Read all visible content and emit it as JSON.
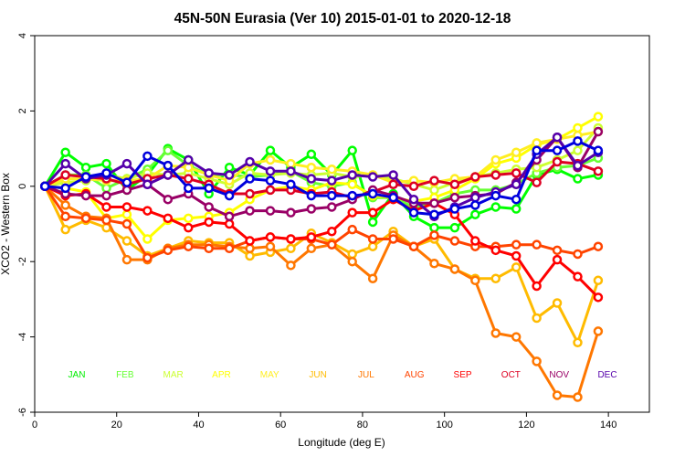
{
  "chart_data": {
    "type": "line",
    "title": "45N-50N Eurasia (Ver 10)   2015-01-01 to 2020-12-18",
    "xlabel": "Longitude (deg E)",
    "ylabel": "XCO2 - Western Box",
    "xlim": [
      0,
      150
    ],
    "ylim": [
      -6,
      4
    ],
    "xticks": [
      0,
      20,
      40,
      60,
      80,
      100,
      120,
      140
    ],
    "yticks": [
      -6,
      -4,
      -2,
      0,
      2,
      4
    ],
    "grid": false,
    "legend_placement": "bottom-inside",
    "x": [
      2.5,
      7.5,
      12.5,
      17.5,
      22.5,
      27.5,
      32.5,
      37.5,
      42.5,
      47.5,
      52.5,
      57.5,
      62.5,
      67.5,
      72.5,
      77.5,
      82.5,
      87.5,
      92.5,
      97.5,
      102.5,
      107.5,
      112.5,
      117.5,
      122.5,
      127.5,
      132.5,
      137.5
    ],
    "series": [
      {
        "name": "JAN",
        "color": "#00ff00",
        "values": [
          0,
          0.9,
          0.5,
          0.6,
          -0.1,
          0.3,
          1.0,
          0.7,
          -0.2,
          0.5,
          0.3,
          0.95,
          0.5,
          0.85,
          0.3,
          0.95,
          -0.95,
          -0.2,
          -0.8,
          -1.1,
          -1.1,
          -0.75,
          -0.55,
          -0.6,
          0.3,
          0.45,
          0.2,
          0.3
        ]
      },
      {
        "name": "FEB",
        "color": "#66ff33",
        "values": [
          0,
          0.3,
          0.3,
          -0.05,
          0.2,
          0.45,
          0.95,
          0.55,
          0.3,
          0.3,
          0.25,
          0.3,
          0.4,
          0.1,
          0.0,
          0.1,
          -0.3,
          -0.3,
          -0.55,
          -0.45,
          -0.2,
          -0.1,
          -0.1,
          0.05,
          0.35,
          0.5,
          0.55,
          0.75
        ]
      },
      {
        "name": "MAR",
        "color": "#ccff33",
        "values": [
          0,
          0.1,
          0.15,
          0.3,
          0.2,
          0.35,
          0.3,
          0.35,
          0.2,
          0.05,
          0.35,
          0.3,
          0.35,
          0.3,
          0.35,
          0.25,
          0.3,
          0.2,
          0.05,
          -0.1,
          0.1,
          0.25,
          0.35,
          0.45,
          0.5,
          0.7,
          0.95,
          1.55
        ]
      },
      {
        "name": "APR",
        "color": "#ffff00",
        "values": [
          0,
          -0.05,
          -0.15,
          -0.85,
          -0.75,
          -1.4,
          -0.9,
          -0.85,
          -0.8,
          -0.7,
          -0.35,
          -0.1,
          0.0,
          -0.1,
          0.1,
          0.05,
          -0.25,
          -0.3,
          -0.4,
          -0.3,
          -0.1,
          0.2,
          0.6,
          0.75,
          1.1,
          1.25,
          1.55,
          1.85
        ]
      },
      {
        "name": "MAY",
        "color": "#ffee22",
        "values": [
          0,
          0.2,
          0.2,
          0.15,
          0.15,
          0.2,
          0.55,
          0.5,
          0.3,
          0.15,
          0.6,
          0.7,
          0.6,
          0.5,
          0.45,
          0.4,
          0.3,
          0.1,
          0.15,
          0.1,
          0.2,
          0.25,
          0.7,
          0.9,
          1.15,
          1.25,
          1.35,
          1.45
        ]
      },
      {
        "name": "JUN",
        "color": "#ffbb00",
        "values": [
          0,
          -1.15,
          -0.9,
          -1.1,
          -1.45,
          -1.85,
          -1.65,
          -1.45,
          -1.5,
          -1.5,
          -1.85,
          -1.75,
          -1.65,
          -1.25,
          -1.5,
          -1.8,
          -1.6,
          -1.2,
          -1.6,
          -1.4,
          -2.2,
          -2.45,
          -2.45,
          -2.15,
          -3.5,
          -3.1,
          -4.15,
          -2.5
        ]
      },
      {
        "name": "JUL",
        "color": "#ff7700",
        "values": [
          0,
          -0.5,
          -0.8,
          -0.85,
          -1.95,
          -1.95,
          -1.65,
          -1.55,
          -1.55,
          -1.6,
          -1.65,
          -1.6,
          -2.1,
          -1.65,
          -1.55,
          -2.0,
          -2.45,
          -1.3,
          -1.6,
          -2.05,
          -2.2,
          -2.5,
          -3.9,
          -4.0,
          -4.65,
          -5.55,
          -5.6,
          -3.85
        ]
      },
      {
        "name": "AUG",
        "color": "#ff4400",
        "values": [
          0,
          -0.8,
          -0.85,
          -0.9,
          -1.0,
          -1.9,
          -1.7,
          -1.6,
          -1.65,
          -1.65,
          -1.45,
          -1.35,
          -1.4,
          -1.4,
          -1.55,
          -1.15,
          -1.4,
          -1.4,
          -1.6,
          -1.3,
          -1.45,
          -1.6,
          -1.6,
          -1.55,
          -1.55,
          -1.7,
          -1.8,
          -1.6
        ]
      },
      {
        "name": "SEP",
        "color": "#ff0000",
        "values": [
          0,
          -0.25,
          -0.2,
          -0.55,
          -0.55,
          -0.65,
          -0.85,
          -1.1,
          -0.95,
          -1.0,
          -1.45,
          -1.35,
          -1.4,
          -1.35,
          -1.2,
          -0.7,
          -0.7,
          -0.35,
          -0.65,
          -0.45,
          -0.75,
          -1.45,
          -1.7,
          -1.85,
          -2.65,
          -1.95,
          -2.4,
          -2.95
        ]
      },
      {
        "name": "OCT",
        "color": "#dd0022",
        "values": [
          0,
          0.3,
          0.25,
          0.2,
          0.05,
          0.2,
          0.3,
          0.2,
          0.05,
          -0.2,
          -0.2,
          -0.1,
          -0.1,
          -0.2,
          -0.15,
          -0.3,
          -0.15,
          0.05,
          0.0,
          0.15,
          0.05,
          0.25,
          0.3,
          0.35,
          0.1,
          0.65,
          0.6,
          0.4
        ]
      },
      {
        "name": "NOV",
        "color": "#990066",
        "values": [
          0,
          -0.2,
          -0.25,
          -0.25,
          -0.1,
          0.05,
          -0.35,
          -0.2,
          -0.55,
          -0.8,
          -0.65,
          -0.65,
          -0.7,
          -0.6,
          -0.55,
          -0.35,
          -0.1,
          -0.25,
          -0.45,
          -0.45,
          -0.3,
          -0.25,
          -0.2,
          0.1,
          0.7,
          1.3,
          0.5,
          1.45
        ]
      },
      {
        "name": "DEC",
        "color": "#5500aa",
        "values": [
          0,
          0.6,
          0.2,
          0.3,
          0.6,
          0.05,
          0.3,
          0.7,
          0.35,
          0.3,
          0.65,
          0.4,
          0.4,
          0.2,
          0.15,
          0.3,
          0.25,
          0.3,
          -0.35,
          -0.8,
          -0.55,
          -0.3,
          -0.15,
          0.05,
          0.85,
          1.3,
          0.55,
          0.9
        ]
      },
      {
        "name": "",
        "color": "#0000dd",
        "values": [
          0,
          -0.05,
          0.25,
          0.35,
          0.1,
          0.8,
          0.55,
          -0.05,
          -0.05,
          -0.25,
          0.2,
          0.15,
          0.05,
          -0.25,
          -0.25,
          -0.25,
          -0.2,
          -0.3,
          -0.7,
          -0.75,
          -0.6,
          -0.5,
          -0.25,
          -0.35,
          0.95,
          0.95,
          1.2,
          0.95
        ]
      }
    ],
    "legend": [
      {
        "label": "JAN",
        "color": "#00ee00"
      },
      {
        "label": "FEB",
        "color": "#66ff33"
      },
      {
        "label": "MAR",
        "color": "#ccff33"
      },
      {
        "label": "APR",
        "color": "#ffff00"
      },
      {
        "label": "MAY",
        "color": "#ffee22"
      },
      {
        "label": "JUN",
        "color": "#ffbb00"
      },
      {
        "label": "JUL",
        "color": "#ff7700"
      },
      {
        "label": "AUG",
        "color": "#ff4400"
      },
      {
        "label": "SEP",
        "color": "#ff0000"
      },
      {
        "label": "OCT",
        "color": "#dd0022"
      },
      {
        "label": "NOV",
        "color": "#990066"
      },
      {
        "label": "DEC",
        "color": "#5500aa"
      }
    ]
  }
}
